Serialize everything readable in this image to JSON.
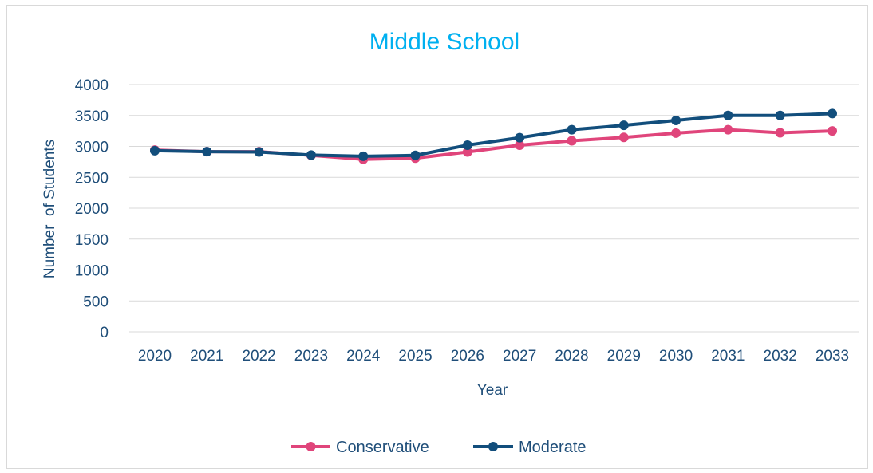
{
  "chart_data": {
    "type": "line",
    "title": "Middle School",
    "xlabel": "Year",
    "ylabel": "Number  of Students",
    "categories": [
      "2020",
      "2021",
      "2022",
      "2023",
      "2024",
      "2025",
      "2026",
      "2027",
      "2028",
      "2029",
      "2030",
      "2031",
      "2032",
      "2033"
    ],
    "ylim": [
      0,
      4000
    ],
    "yticks": [
      "0",
      "500",
      "1000",
      "1500",
      "2000",
      "2500",
      "3000",
      "3500",
      "4000"
    ],
    "grid": true,
    "legend_position": "bottom",
    "series": [
      {
        "name": "Conservative",
        "color": "#e0457b",
        "values": [
          2940,
          2915,
          2915,
          2855,
          2790,
          2810,
          2910,
          3020,
          3090,
          3145,
          3215,
          3270,
          3220,
          3250
        ]
      },
      {
        "name": "Moderate",
        "color": "#124e7c",
        "values": [
          2930,
          2915,
          2910,
          2860,
          2840,
          2855,
          3020,
          3140,
          3270,
          3340,
          3420,
          3500,
          3500,
          3530
        ]
      }
    ]
  }
}
